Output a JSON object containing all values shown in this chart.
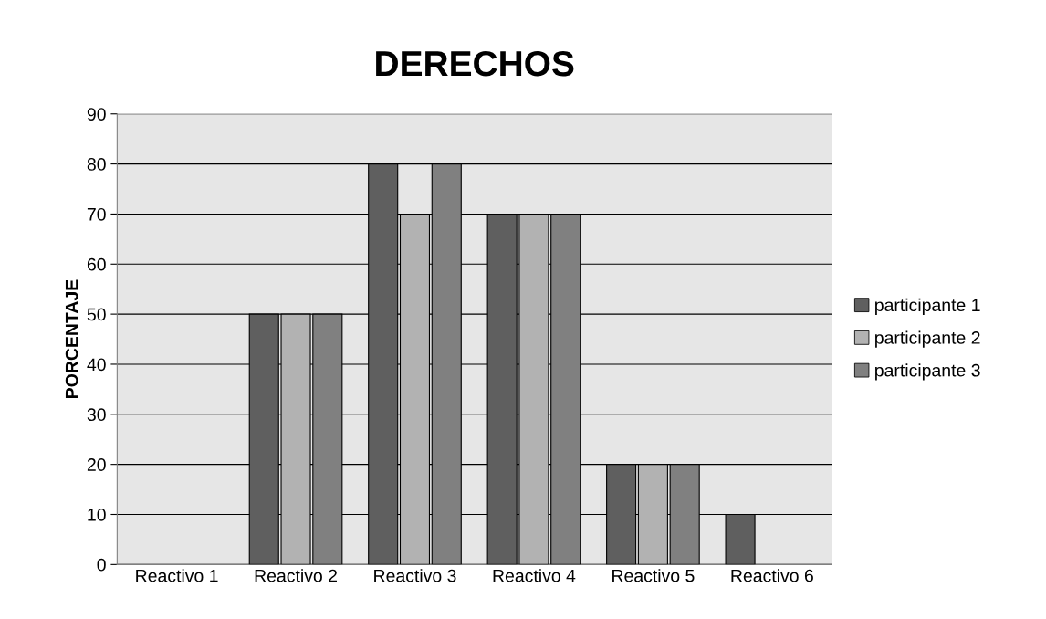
{
  "chart_data": {
    "type": "bar",
    "title": "DERECHOS",
    "ylabel": "PORCENTAJE",
    "categories": [
      "Reactivo 1",
      "Reactivo 2",
      "Reactivo 3",
      "Reactivo 4",
      "Reactivo 5",
      "Reactivo 6"
    ],
    "series": [
      {
        "name": "participante 1",
        "color": "#5f5f5f",
        "values": [
          0,
          50,
          80,
          70,
          20,
          10
        ]
      },
      {
        "name": "participante 2",
        "color": "#b2b2b2",
        "values": [
          0,
          50,
          70,
          70,
          20,
          0
        ]
      },
      {
        "name": "participante 3",
        "color": "#808080",
        "values": [
          0,
          50,
          80,
          70,
          20,
          0
        ]
      }
    ],
    "ylim": [
      0,
      90
    ],
    "yticks": [
      0,
      10,
      20,
      30,
      40,
      50,
      60,
      70,
      80,
      90
    ],
    "grid": "y",
    "legend": "right"
  }
}
